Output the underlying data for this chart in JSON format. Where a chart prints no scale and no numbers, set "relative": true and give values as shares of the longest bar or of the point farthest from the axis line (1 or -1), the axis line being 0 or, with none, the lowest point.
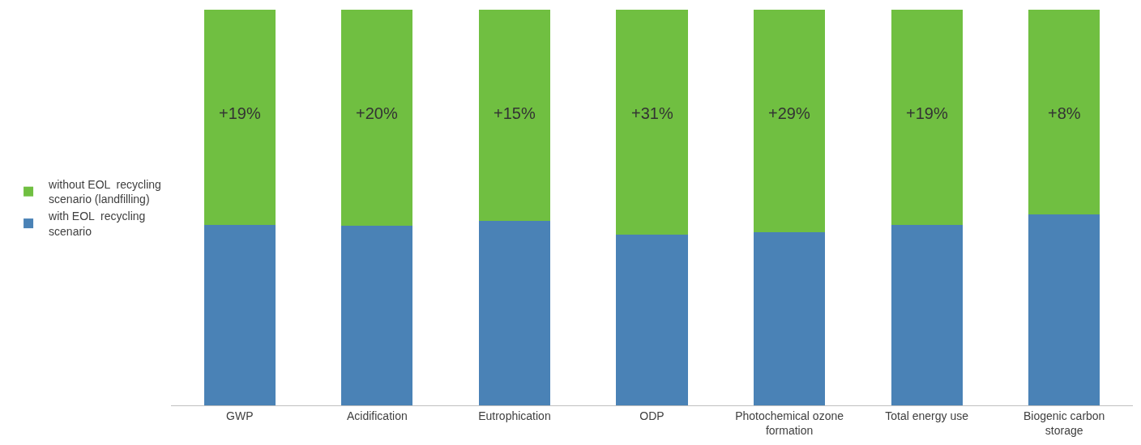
{
  "chart_data": {
    "type": "bar",
    "stacked": true,
    "relative": true,
    "legend": "left",
    "categories": [
      "GWP",
      "Acidification",
      "Eutrophication",
      "ODP",
      "Photochemical ozone formation",
      "Total energy use",
      "Biogenic carbon storage"
    ],
    "series": [
      {
        "name": "with EOL  recycling scenario",
        "color": "#4a82b6",
        "values": [
          0.456,
          0.454,
          0.466,
          0.432,
          0.438,
          0.456,
          0.482
        ]
      },
      {
        "name": "without EOL  recycling scenario (landfilling)",
        "color": "#70bf41",
        "values": [
          0.544,
          0.546,
          0.534,
          0.568,
          0.562,
          0.544,
          0.518
        ]
      }
    ],
    "annotations": [
      "+19%",
      "+20%",
      "+15%",
      "+31%",
      "+29%",
      "+19%",
      "+8%"
    ]
  }
}
